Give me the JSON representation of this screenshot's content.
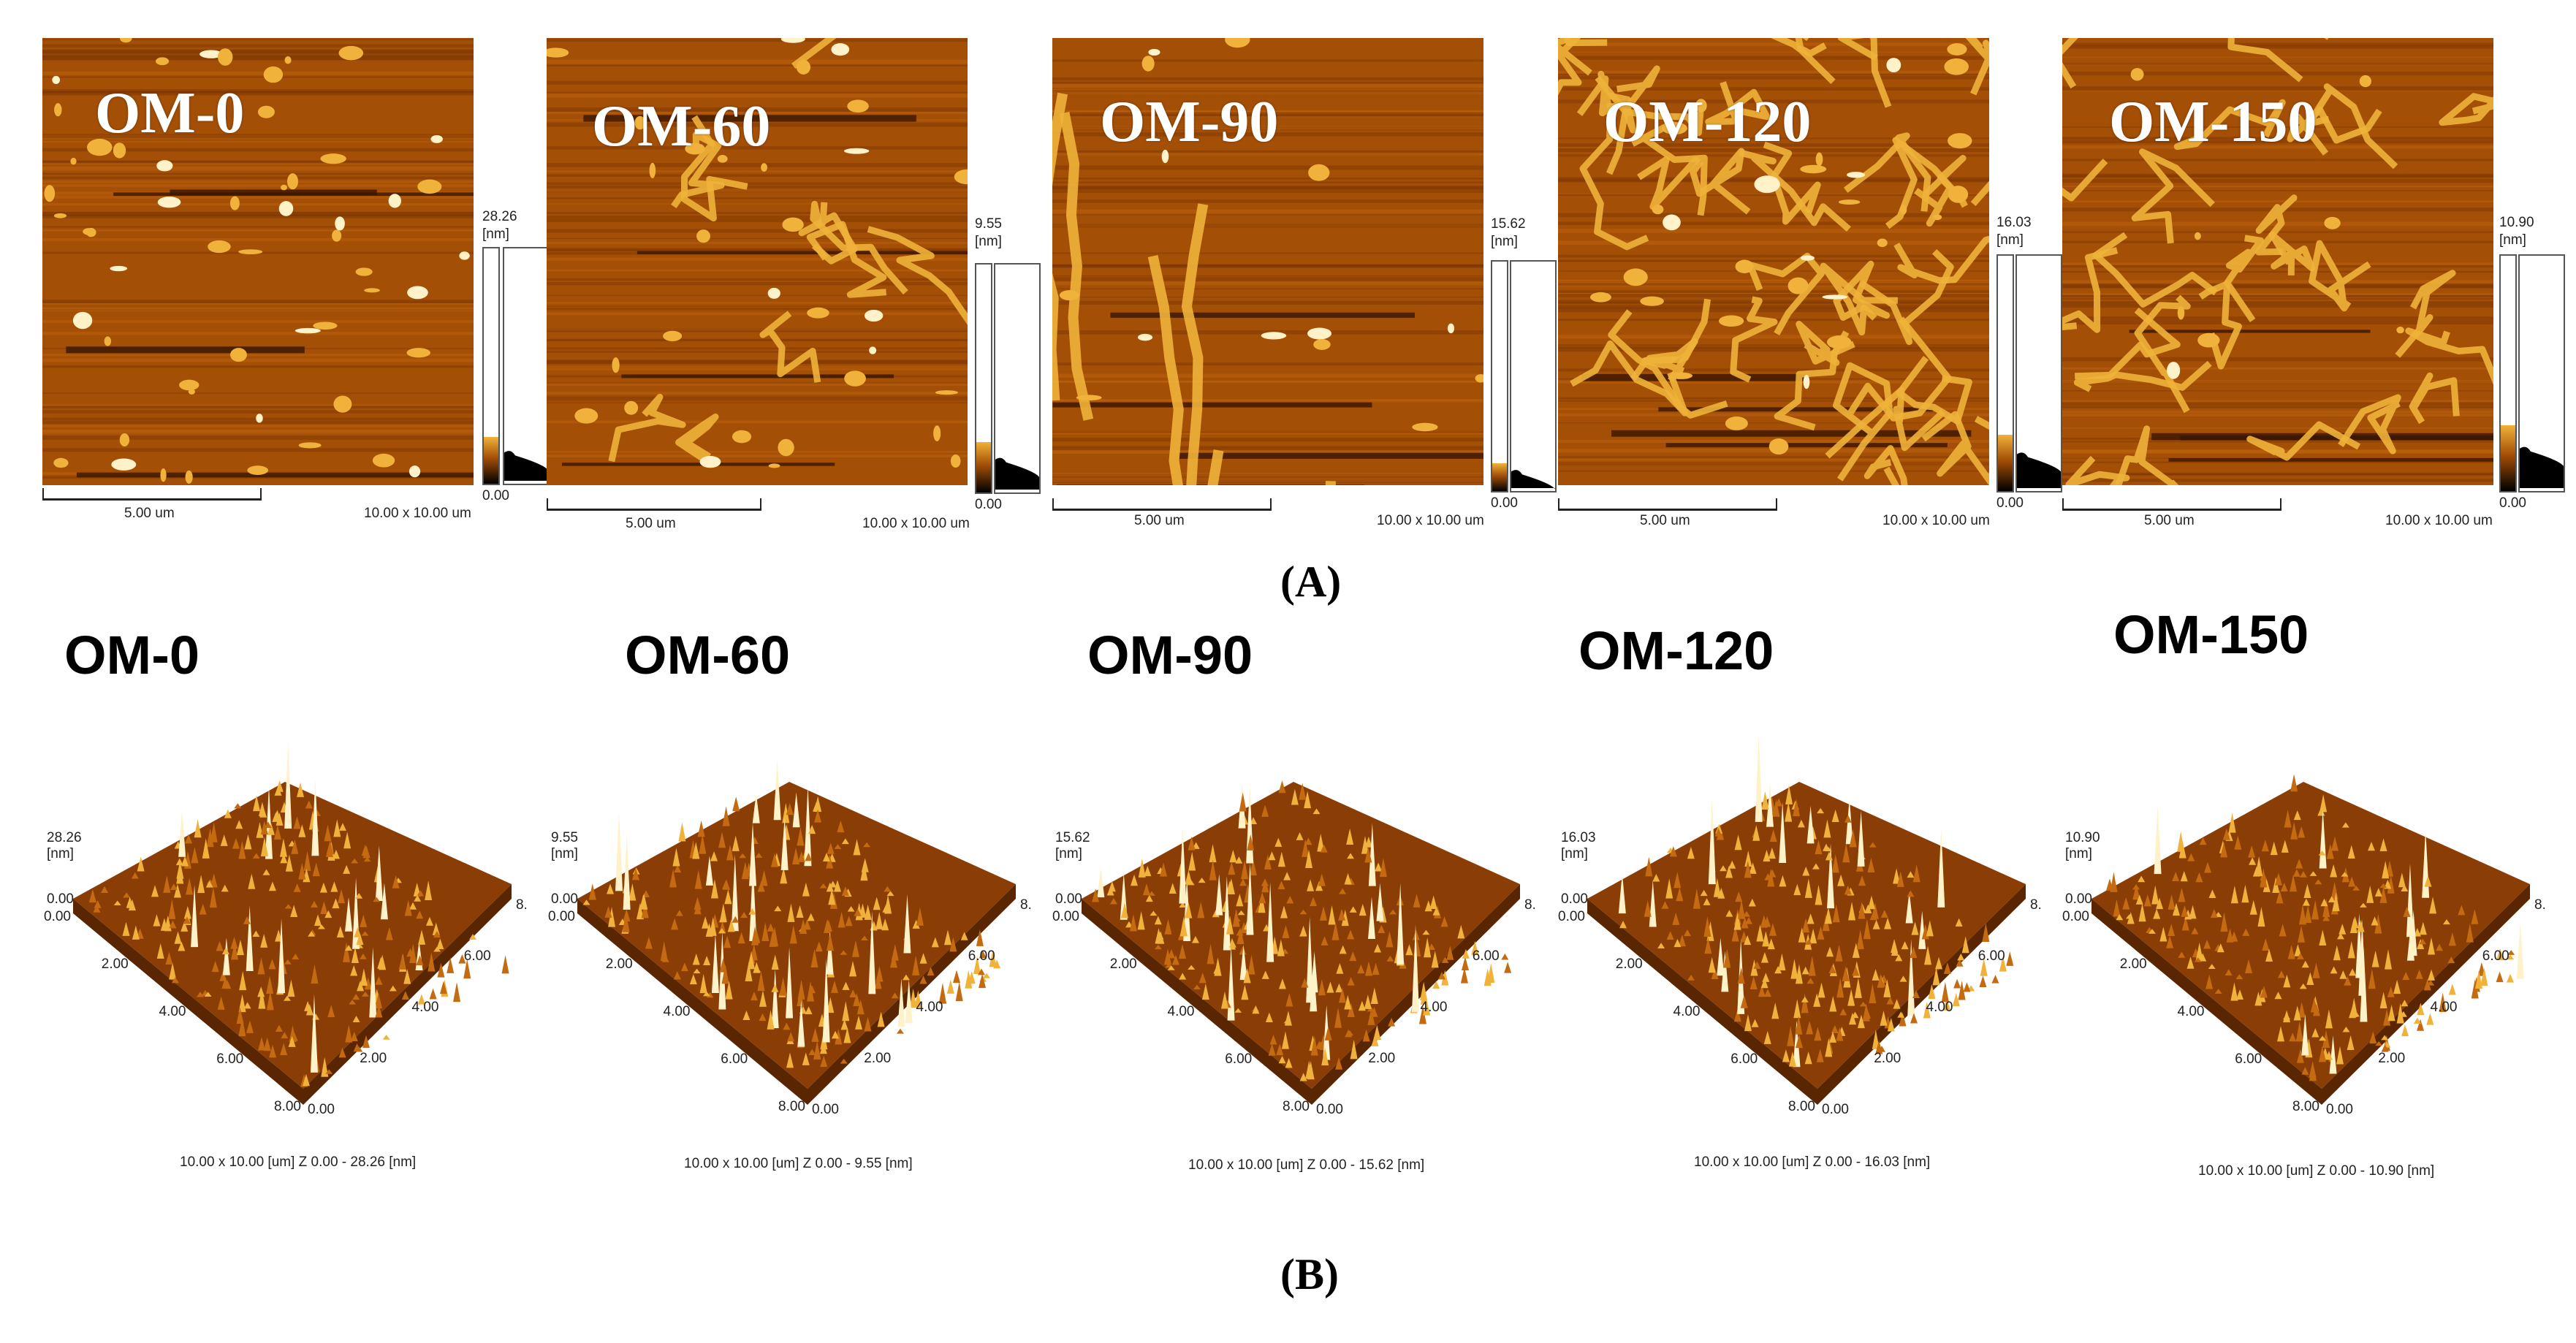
{
  "panel_a_label": "(A)",
  "panel_b_label": "(B)",
  "samples": [
    {
      "name": "OM-0",
      "zmax": "28.26",
      "zmin": "0.00",
      "unit": "[nm]",
      "scale_label": "5.00 um",
      "size_label": "10.00 x 10.00 um",
      "summary": "10.00 x 10.00 [um]   Z  0.00  -  28.26 [nm]",
      "fill_fraction": 0.2
    },
    {
      "name": "OM-60",
      "zmax": "9.55",
      "zmin": "0.00",
      "unit": "[nm]",
      "scale_label": "5.00 um",
      "size_label": "10.00 x 10.00 um",
      "summary": "10.00 x 10.00 [um]   Z  0.00  -  9.55 [nm]",
      "fill_fraction": 0.22
    },
    {
      "name": "OM-90",
      "zmax": "15.62",
      "zmin": "0.00",
      "unit": "[nm]",
      "scale_label": "5.00 um",
      "size_label": "10.00 x 10.00 um",
      "summary": "10.00 x 10.00 [um]   Z  0.00  -  15.62 [nm]",
      "fill_fraction": 0.12
    },
    {
      "name": "OM-120",
      "zmax": "16.03",
      "zmin": "0.00",
      "unit": "[nm]",
      "scale_label": "5.00 um",
      "size_label": "10.00 x 10.00 um",
      "summary": "10.00 x 10.00 [um]   Z  0.00  -  16.03 [nm]",
      "fill_fraction": 0.24
    },
    {
      "name": "OM-150",
      "zmax": "10.90",
      "zmin": "0.00",
      "unit": "[nm]",
      "scale_label": "5.00 um",
      "size_label": "10.00 x 10.00 um",
      "summary": "10.00 x 10.00 [um]   Z  0.00  -  10.90 [nm]",
      "fill_fraction": 0.28
    }
  ],
  "axis_ticks": [
    "0.00",
    "2.00",
    "4.00",
    "6.00",
    "8.00"
  ],
  "colors": {
    "afm_dark": "#3a1500",
    "afm_mid": "#a44f06",
    "afm_light": "#f0b23a",
    "afm_peak": "#fff2c8"
  }
}
